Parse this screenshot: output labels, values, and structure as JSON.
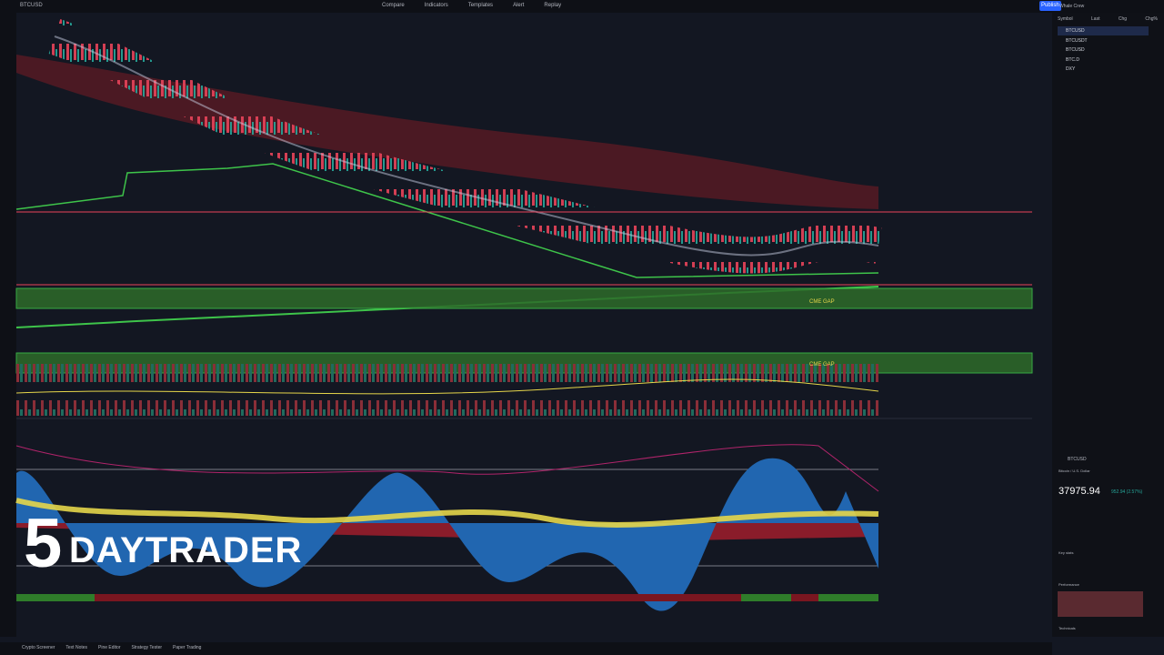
{
  "toolbar": {
    "symbol": "BTCUSD",
    "items": [
      "Compare",
      "Indicators",
      "Templates",
      "Alert",
      "Replay"
    ],
    "publish": "Publish"
  },
  "chart": {
    "labels": [
      "CME GAP",
      "CME GAP"
    ]
  },
  "watermark": {
    "digit": "5",
    "text": "DAYTRADER"
  },
  "watchlist": {
    "title": "Whale Crew",
    "columns": [
      "Symbol",
      "Last",
      "Chg",
      "Chg%"
    ],
    "symbols": [
      "BTCUSD",
      "BTCUSDT",
      "BTCUSD",
      "BTC.D",
      "DXY"
    ]
  },
  "details": {
    "symbol": "BTCUSD",
    "description": "Bitcoin / U.S. Dollar",
    "price": "37975.94",
    "change": "952.94 (2.57%)",
    "sections": [
      "Key stats",
      "Performance",
      "Technicals"
    ]
  },
  "bottom": {
    "tabs": [
      "Crypto Screener",
      "Text Notes",
      "Pine Editor",
      "Strategy Tester",
      "Paper Trading"
    ]
  }
}
